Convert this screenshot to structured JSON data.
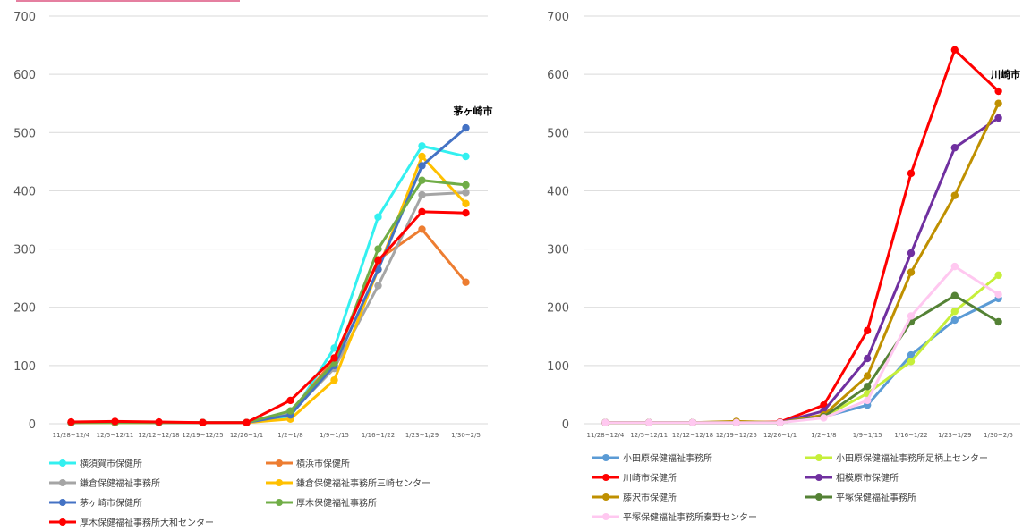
{
  "colors": {
    "grid": "#d9d9d9",
    "axis_text": "#595959",
    "underline": "#e57fa0"
  },
  "chart_data": [
    {
      "type": "line",
      "x": [
        "11/28~12/4",
        "12/5~12/11",
        "12/12~12/18",
        "12/19~12/25",
        "12/26~1/1",
        "1/2~1/8",
        "1/9~1/15",
        "1/16~1/22",
        "1/23~1/29",
        "1/30~2/5"
      ],
      "ylim": [
        0,
        700
      ],
      "yticks": [
        0,
        100,
        200,
        300,
        400,
        500,
        600,
        700
      ],
      "grid": true,
      "legend_position": "bottom",
      "annotation": {
        "text": "茅ヶ崎市",
        "series_index": 4
      },
      "series": [
        {
          "name": "横須賀市保健所",
          "color": "#33f0f0",
          "values": [
            2,
            3,
            2,
            2,
            2,
            12,
            130,
            355,
            477,
            459
          ]
        },
        {
          "name": "横浜市保健所",
          "color": "#ed7d31",
          "values": [
            2,
            2,
            2,
            2,
            2,
            20,
            110,
            282,
            334,
            243
          ]
        },
        {
          "name": "鎌倉保健福祉事務所",
          "color": "#a5a5a5",
          "values": [
            2,
            2,
            2,
            2,
            2,
            18,
            95,
            237,
            393,
            397
          ]
        },
        {
          "name": "鎌倉保健福祉事務所三崎センター",
          "color": "#ffc000",
          "values": [
            2,
            2,
            2,
            2,
            2,
            8,
            75,
            265,
            459,
            378
          ]
        },
        {
          "name": "茅ヶ崎市保健所",
          "color": "#4472c4",
          "values": [
            2,
            3,
            2,
            2,
            2,
            15,
            100,
            265,
            443,
            508
          ]
        },
        {
          "name": "厚木保健福祉事務所",
          "color": "#70ad47",
          "values": [
            2,
            2,
            2,
            2,
            2,
            22,
            105,
            300,
            418,
            410
          ]
        },
        {
          "name": "厚木保健福祉事務所大和センター",
          "color": "#ff0000",
          "values": [
            3,
            4,
            3,
            2,
            2,
            40,
            113,
            280,
            364,
            362
          ]
        }
      ]
    },
    {
      "type": "line",
      "x": [
        "11/28~12/4",
        "12/5~12/11",
        "12/12~12/18",
        "12/19~12/25",
        "12/26~1/1",
        "1/2~1/8",
        "1/9~1/15",
        "1/16~1/22",
        "1/23~1/29",
        "1/30~2/5"
      ],
      "ylim": [
        0,
        700
      ],
      "yticks": [
        0,
        100,
        200,
        300,
        400,
        500,
        600,
        700
      ],
      "grid": true,
      "legend_position": "bottom",
      "annotation": {
        "text": "川崎市",
        "series_index": 2
      },
      "series": [
        {
          "name": "小田原保健福祉事務所",
          "color": "#5b9bd5",
          "values": [
            2,
            2,
            2,
            2,
            2,
            12,
            32,
            118,
            178,
            215
          ]
        },
        {
          "name": "小田原保健福祉事務所足柄上センター",
          "color": "#c6ef3a",
          "values": [
            2,
            2,
            2,
            3,
            2,
            12,
            52,
            107,
            193,
            255
          ]
        },
        {
          "name": "川崎市保健所",
          "color": "#ff0000",
          "values": [
            2,
            2,
            2,
            2,
            3,
            32,
            160,
            430,
            642,
            571
          ]
        },
        {
          "name": "相模原市保健所",
          "color": "#7030a0",
          "values": [
            2,
            2,
            2,
            2,
            2,
            22,
            112,
            293,
            474,
            525
          ]
        },
        {
          "name": "藤沢市保健所",
          "color": "#bf9000",
          "values": [
            2,
            2,
            2,
            4,
            2,
            15,
            82,
            260,
            392,
            550
          ]
        },
        {
          "name": "平塚保健福祉事務所",
          "color": "#548235",
          "values": [
            2,
            2,
            2,
            2,
            2,
            12,
            64,
            175,
            220,
            175
          ]
        },
        {
          "name": "平塚保健福祉事務所秦野センター",
          "color": "#ffc8f0",
          "values": [
            2,
            2,
            2,
            2,
            2,
            10,
            40,
            185,
            270,
            222
          ]
        }
      ]
    }
  ]
}
